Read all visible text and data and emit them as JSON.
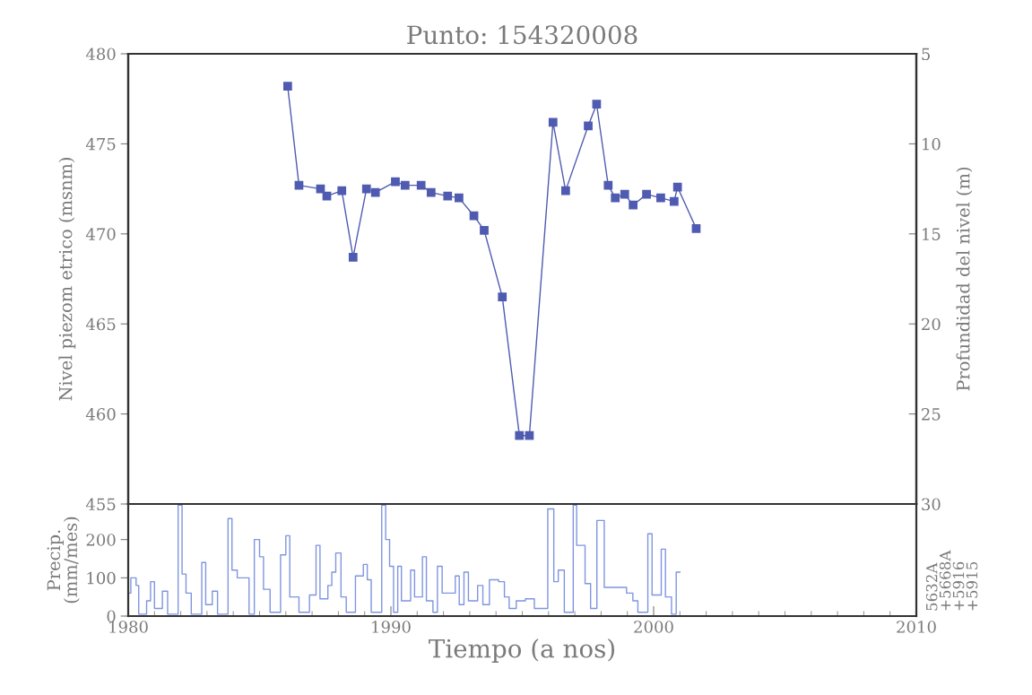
{
  "chart_data": [
    {
      "type": "line",
      "title": "Punto: 154320008",
      "ylabel": "Nivel piezom etrico (msnm)",
      "y2label": "Profundidad del nivel (m)",
      "xlim": [
        1980,
        2010
      ],
      "ylim": [
        455,
        480
      ],
      "yticks": [
        455,
        460,
        465,
        470,
        475,
        480
      ],
      "y2lim": [
        30,
        5
      ],
      "y2ticks": [
        5,
        10,
        15,
        20,
        25,
        30
      ],
      "tick_labels": "y",
      "marker": "square",
      "line_style": "solid",
      "grid": false,
      "legend": false,
      "series": [
        {
          "color": "#4f5bb0",
          "x": [
            1986.07,
            1986.5,
            1987.32,
            1987.56,
            1988.13,
            1988.56,
            1989.07,
            1989.41,
            1990.17,
            1990.54,
            1991.15,
            1991.53,
            1992.16,
            1992.59,
            1993.16,
            1993.55,
            1994.24,
            1994.89,
            1995.27,
            1996.17,
            1996.65,
            1997.51,
            1997.83,
            1998.27,
            1998.54,
            1998.9,
            1999.22,
            1999.73,
            2000.27,
            2000.78,
            2000.91,
            2001.62
          ],
          "values": [
            478.2,
            472.7,
            472.5,
            472.1,
            472.4,
            468.7,
            472.5,
            472.3,
            472.9,
            472.7,
            472.7,
            472.3,
            472.1,
            472.0,
            471.0,
            470.2,
            466.5,
            458.8,
            458.8,
            476.2,
            472.4,
            476.0,
            477.2,
            472.7,
            472.0,
            472.2,
            471.6,
            472.2,
            472.0,
            471.8,
            472.6,
            470.3
          ]
        }
      ]
    },
    {
      "type": "step",
      "xlabel": "Tiempo (a nos)",
      "ylabel": "Precip.\n(mm/mes)",
      "xlim": [
        1980,
        2010
      ],
      "xticks": [
        1980,
        1990,
        2000,
        2010
      ],
      "ylim": [
        0,
        293
      ],
      "yticks": [
        0,
        100,
        200
      ],
      "grid": false,
      "legend": false,
      "line_style": "solid",
      "annotations": [
        "5632A",
        "+5668A",
        "+5916",
        "+5915"
      ],
      "series": [
        {
          "color": "#7f95e0",
          "x": [
            1980.0,
            1980.1,
            1980.3,
            1980.4,
            1980.7,
            1980.85,
            1981.0,
            1981.3,
            1981.5,
            1981.9,
            1982.05,
            1982.2,
            1982.4,
            1982.8,
            1982.95,
            1983.2,
            1983.4,
            1983.8,
            1983.95,
            1984.15,
            1984.4,
            1984.6,
            1984.8,
            1985.0,
            1985.15,
            1985.4,
            1985.8,
            1986.0,
            1986.15,
            1986.5,
            1986.9,
            1987.15,
            1987.3,
            1987.6,
            1987.75,
            1987.9,
            1988.1,
            1988.3,
            1988.65,
            1988.95,
            1989.1,
            1989.25,
            1989.65,
            1989.8,
            1989.95,
            1990.1,
            1990.26,
            1990.4,
            1990.75,
            1990.9,
            1991.2,
            1991.35,
            1991.6,
            1991.77,
            1991.95,
            1992.23,
            1992.45,
            1992.6,
            1992.78,
            1992.95,
            1993.08,
            1993.3,
            1993.5,
            1993.75,
            1994.1,
            1994.32,
            1994.5,
            1994.77,
            1995.12,
            1995.46,
            1995.68,
            1995.97,
            1996.2,
            1996.37,
            1996.6,
            1996.94,
            1997.07,
            1997.39,
            1997.6,
            1997.84,
            1998.12,
            1998.41,
            1998.75,
            1998.97,
            1999.21,
            1999.4,
            1999.78,
            1999.94,
            2000.29,
            2000.45,
            2000.68,
            2000.86,
            2001.0
          ],
          "values": [
            60,
            100,
            80,
            5,
            40,
            90,
            20,
            65,
            5,
            290,
            110,
            60,
            5,
            140,
            30,
            65,
            5,
            255,
            120,
            100,
            100,
            5,
            200,
            155,
            70,
            10,
            160,
            210,
            50,
            10,
            55,
            185,
            45,
            80,
            115,
            165,
            50,
            10,
            105,
            135,
            95,
            10,
            290,
            200,
            130,
            10,
            130,
            40,
            120,
            50,
            155,
            40,
            10,
            130,
            60,
            60,
            105,
            30,
            115,
            40,
            40,
            80,
            30,
            95,
            90,
            50,
            20,
            40,
            45,
            20,
            20,
            280,
            90,
            120,
            10,
            290,
            185,
            85,
            20,
            250,
            75,
            75,
            75,
            60,
            40,
            10,
            215,
            55,
            175,
            50,
            5,
            115,
            115
          ]
        }
      ]
    }
  ]
}
